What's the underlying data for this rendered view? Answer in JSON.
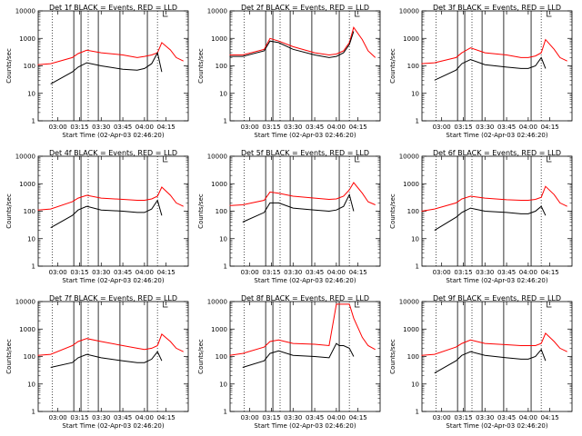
{
  "figure": {
    "xlabel": "Start Time (02-Apr-03 02:46:20)",
    "ylabel": "Counts/sec",
    "colors": {
      "events": "#000000",
      "lld": "#ff0000"
    }
  },
  "chart_data": [
    {
      "type": "line",
      "title": "Det 1f BLACK = Events, RED = LLD",
      "xlabel": "Start Time (02-Apr-03 02:46:20)",
      "ylabel": "Counts/sec",
      "x_ticks": [
        "03:00",
        "03:15",
        "03:30",
        "03:45",
        "04:00",
        "04:15"
      ],
      "y_ticks": [
        "1",
        "10",
        "100",
        "1000",
        "10000"
      ],
      "y_scale": "log",
      "ylim": [
        1,
        10000
      ],
      "x": [
        "02:46",
        "02:55",
        "03:10",
        "03:14",
        "03:20",
        "03:30",
        "03:45",
        "03:55",
        "04:00",
        "04:05",
        "04:09",
        "04:12",
        "04:18",
        "04:22",
        "04:27"
      ],
      "series": [
        {
          "name": "LLD",
          "color": "red",
          "values": [
            110,
            120,
            200,
            280,
            370,
            300,
            250,
            200,
            220,
            250,
            300,
            700,
            380,
            200,
            150
          ]
        },
        {
          "name": "Events",
          "color": "black",
          "values": [
            null,
            22,
            60,
            90,
            130,
            100,
            75,
            70,
            80,
            120,
            300,
            60,
            null,
            null,
            null
          ]
        }
      ]
    },
    {
      "type": "line",
      "title": "Det 2f BLACK = Events, RED = LLD",
      "xlabel": "Start Time (02-Apr-03 02:46:20)",
      "ylabel": "Counts/sec",
      "x_ticks": [
        "03:00",
        "03:15",
        "03:30",
        "03:45",
        "04:00",
        "04:15"
      ],
      "y_ticks": [
        "1",
        "10",
        "100",
        "1000",
        "10000"
      ],
      "y_scale": "log",
      "ylim": [
        1,
        10000
      ],
      "x": [
        "02:46",
        "02:55",
        "03:10",
        "03:14",
        "03:20",
        "03:30",
        "03:45",
        "03:55",
        "04:00",
        "04:05",
        "04:09",
        "04:12",
        "04:18",
        "04:22",
        "04:27"
      ],
      "series": [
        {
          "name": "LLD",
          "color": "red",
          "values": [
            250,
            250,
            400,
            1000,
            800,
            500,
            300,
            250,
            270,
            350,
            700,
            2500,
            900,
            350,
            200
          ]
        },
        {
          "name": "Events",
          "color": "black",
          "values": [
            220,
            220,
            350,
            800,
            700,
            400,
            250,
            200,
            220,
            300,
            600,
            1800,
            null,
            null,
            null
          ]
        }
      ]
    },
    {
      "type": "line",
      "title": "Det 3f BLACK = Events, RED = LLD",
      "xlabel": "Start Time (02-Apr-03 02:46:20)",
      "ylabel": "Counts/sec",
      "x_ticks": [
        "03:00",
        "03:15",
        "03:30",
        "03:45",
        "04:00",
        "04:15"
      ],
      "y_ticks": [
        "1",
        "10",
        "100",
        "1000",
        "10000"
      ],
      "y_scale": "log",
      "ylim": [
        1,
        10000
      ],
      "x": [
        "02:46",
        "02:55",
        "03:10",
        "03:14",
        "03:20",
        "03:30",
        "03:45",
        "03:55",
        "04:00",
        "04:05",
        "04:09",
        "04:12",
        "04:18",
        "04:22",
        "04:27"
      ],
      "series": [
        {
          "name": "LLD",
          "color": "red",
          "values": [
            120,
            130,
            200,
            300,
            450,
            300,
            250,
            200,
            200,
            230,
            300,
            900,
            400,
            200,
            150
          ]
        },
        {
          "name": "Events",
          "color": "black",
          "values": [
            null,
            30,
            70,
            120,
            170,
            110,
            90,
            80,
            80,
            100,
            200,
            80,
            null,
            null,
            null
          ]
        }
      ]
    },
    {
      "type": "line",
      "title": "Det 4f BLACK = Events, RED = LLD",
      "xlabel": "Start Time (02-Apr-03 02:46:20)",
      "ylabel": "Counts/sec",
      "x_ticks": [
        "03:00",
        "03:15",
        "03:30",
        "03:45",
        "04:00",
        "04:15"
      ],
      "y_ticks": [
        "1",
        "10",
        "100",
        "1000",
        "10000"
      ],
      "y_scale": "log",
      "ylim": [
        1,
        10000
      ],
      "x": [
        "02:46",
        "02:55",
        "03:10",
        "03:14",
        "03:20",
        "03:30",
        "03:45",
        "03:55",
        "04:00",
        "04:05",
        "04:09",
        "04:12",
        "04:18",
        "04:22",
        "04:27"
      ],
      "series": [
        {
          "name": "LLD",
          "color": "red",
          "values": [
            110,
            120,
            220,
            300,
            380,
            300,
            270,
            250,
            250,
            280,
            350,
            750,
            380,
            200,
            150
          ]
        },
        {
          "name": "Events",
          "color": "black",
          "values": [
            null,
            25,
            70,
            110,
            150,
            110,
            100,
            90,
            90,
            120,
            250,
            70,
            null,
            null,
            null
          ]
        }
      ]
    },
    {
      "type": "line",
      "title": "Det 5f BLACK = Events, RED = LLD",
      "xlabel": "Start Time (02-Apr-03 02:46:20)",
      "ylabel": "Counts/sec",
      "x_ticks": [
        "03:00",
        "03:15",
        "03:30",
        "03:45",
        "04:00",
        "04:15"
      ],
      "y_ticks": [
        "1",
        "10",
        "100",
        "1000",
        "10000"
      ],
      "y_scale": "log",
      "ylim": [
        1,
        10000
      ],
      "x": [
        "02:46",
        "02:55",
        "03:10",
        "03:14",
        "03:20",
        "03:30",
        "03:45",
        "03:55",
        "04:00",
        "04:05",
        "04:09",
        "04:12",
        "04:18",
        "04:22",
        "04:27"
      ],
      "series": [
        {
          "name": "LLD",
          "color": "red",
          "values": [
            160,
            170,
            250,
            500,
            450,
            350,
            300,
            270,
            280,
            350,
            600,
            1100,
            450,
            220,
            170
          ]
        },
        {
          "name": "Events",
          "color": "black",
          "values": [
            null,
            40,
            90,
            200,
            200,
            130,
            110,
            100,
            110,
            150,
            400,
            100,
            null,
            null,
            null
          ]
        }
      ]
    },
    {
      "type": "line",
      "title": "Det 6f BLACK = Events, RED = LLD",
      "xlabel": "Start Time (02-Apr-03 02:46:20)",
      "ylabel": "Counts/sec",
      "x_ticks": [
        "03:00",
        "03:15",
        "03:30",
        "03:45",
        "04:00",
        "04:15"
      ],
      "y_ticks": [
        "1",
        "10",
        "100",
        "1000",
        "10000"
      ],
      "y_scale": "log",
      "ylim": [
        1,
        10000
      ],
      "x": [
        "02:46",
        "02:55",
        "03:10",
        "03:14",
        "03:20",
        "03:30",
        "03:45",
        "03:55",
        "04:00",
        "04:05",
        "04:09",
        "04:12",
        "04:18",
        "04:22",
        "04:27"
      ],
      "series": [
        {
          "name": "LLD",
          "color": "red",
          "values": [
            100,
            120,
            200,
            280,
            350,
            300,
            260,
            250,
            250,
            270,
            320,
            800,
            400,
            200,
            150
          ]
        },
        {
          "name": "Events",
          "color": "black",
          "values": [
            null,
            20,
            60,
            90,
            130,
            100,
            90,
            80,
            80,
            100,
            150,
            70,
            null,
            null,
            null
          ]
        }
      ]
    },
    {
      "type": "line",
      "title": "Det 7f BLACK = Events, RED = LLD",
      "xlabel": "Start Time (02-Apr-03 02:46:20)",
      "ylabel": "Counts/sec",
      "x_ticks": [
        "03:00",
        "03:15",
        "03:30",
        "03:45",
        "04:00",
        "04:15"
      ],
      "y_ticks": [
        "1",
        "10",
        "100",
        "1000",
        "10000"
      ],
      "y_scale": "log",
      "ylim": [
        1,
        10000
      ],
      "x": [
        "02:46",
        "02:55",
        "03:10",
        "03:14",
        "03:20",
        "03:30",
        "03:45",
        "03:55",
        "04:00",
        "04:05",
        "04:09",
        "04:12",
        "04:18",
        "04:22",
        "04:27"
      ],
      "series": [
        {
          "name": "LLD",
          "color": "red",
          "values": [
            110,
            120,
            250,
            350,
            450,
            350,
            250,
            200,
            180,
            200,
            250,
            650,
            350,
            200,
            150
          ]
        },
        {
          "name": "Events",
          "color": "black",
          "values": [
            null,
            40,
            60,
            90,
            120,
            90,
            70,
            60,
            60,
            80,
            150,
            70,
            null,
            null,
            null
          ]
        }
      ]
    },
    {
      "type": "line",
      "title": "Det 8f BLACK = Events, RED = LLD",
      "xlabel": "Start Time (02-Apr-03 02:46:20)",
      "ylabel": "Counts/sec",
      "x_ticks": [
        "03:00",
        "03:15",
        "03:30",
        "03:45",
        "04:00",
        "04:15"
      ],
      "y_ticks": [
        "1",
        "10",
        "100",
        "1000",
        "10000"
      ],
      "y_scale": "log",
      "ylim": [
        1,
        10000
      ],
      "x": [
        "02:46",
        "02:55",
        "03:10",
        "03:14",
        "03:20",
        "03:30",
        "03:45",
        "03:55",
        "04:00",
        "04:02",
        "04:05",
        "04:09",
        "04:12",
        "04:18",
        "04:22",
        "04:27"
      ],
      "series": [
        {
          "name": "LLD",
          "color": "red",
          "values": [
            110,
            130,
            220,
            350,
            400,
            300,
            280,
            250,
            8000,
            8000,
            8000,
            8000,
            2500,
            500,
            250,
            180
          ]
        },
        {
          "name": "Events",
          "color": "black",
          "values": [
            null,
            40,
            70,
            130,
            160,
            110,
            100,
            90,
            300,
            250,
            250,
            200,
            100,
            null,
            null,
            null
          ]
        }
      ]
    },
    {
      "type": "line",
      "title": "Det 9f BLACK = Events, RED = LLD",
      "xlabel": "Start Time (02-Apr-03 02:46:20)",
      "ylabel": "Counts/sec",
      "x_ticks": [
        "03:00",
        "03:15",
        "03:30",
        "03:45",
        "04:00",
        "04:15"
      ],
      "y_ticks": [
        "1",
        "10",
        "100",
        "1000",
        "10000"
      ],
      "y_scale": "log",
      "ylim": [
        1,
        10000
      ],
      "x": [
        "02:46",
        "02:55",
        "03:10",
        "03:14",
        "03:20",
        "03:30",
        "03:45",
        "03:55",
        "04:00",
        "04:05",
        "04:09",
        "04:12",
        "04:18",
        "04:22",
        "04:27"
      ],
      "series": [
        {
          "name": "LLD",
          "color": "red",
          "values": [
            110,
            120,
            220,
            300,
            400,
            300,
            270,
            250,
            250,
            250,
            300,
            700,
            350,
            200,
            150
          ]
        },
        {
          "name": "Events",
          "color": "black",
          "values": [
            null,
            25,
            70,
            110,
            150,
            110,
            90,
            80,
            80,
            100,
            180,
            70,
            null,
            null,
            null
          ]
        }
      ]
    }
  ]
}
